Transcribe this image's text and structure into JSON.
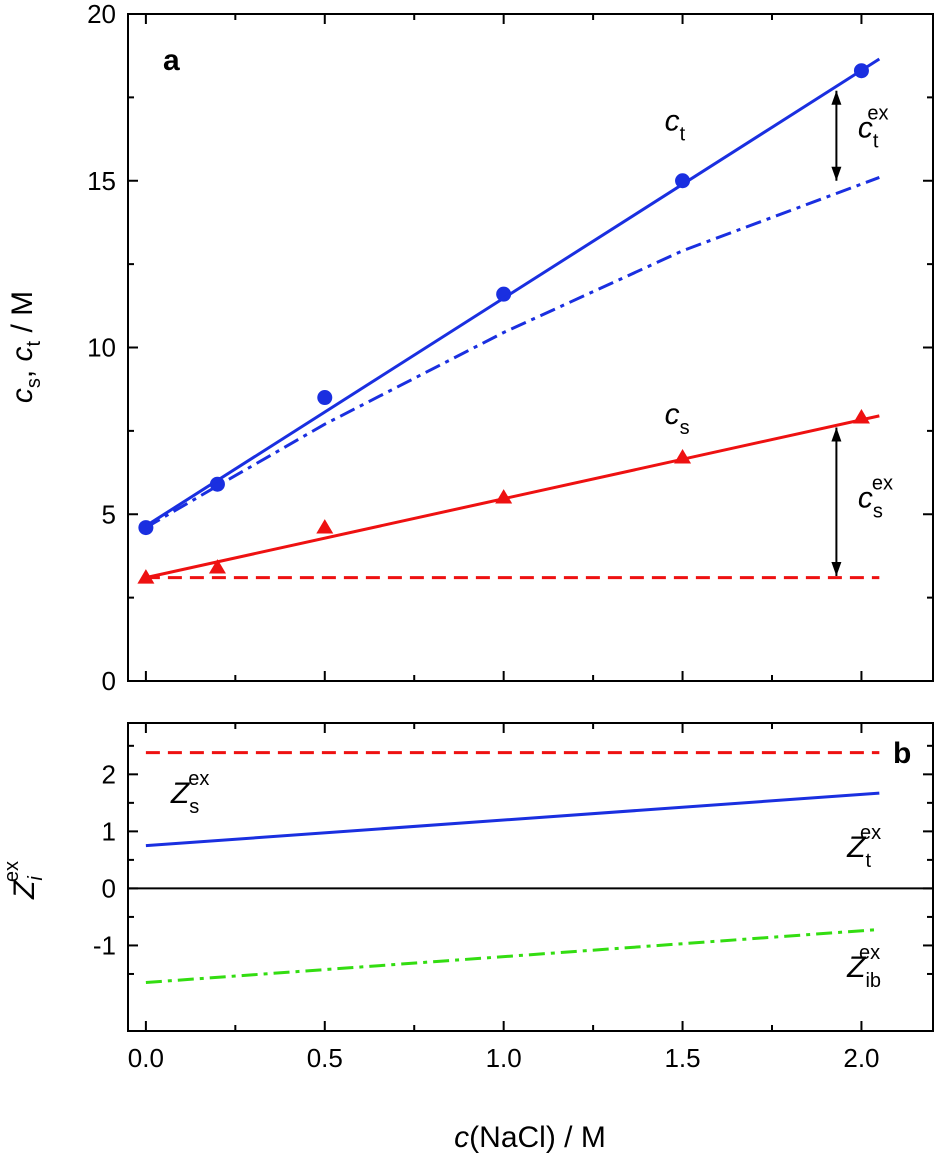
{
  "chart_data": [
    {
      "panel": "a",
      "type": "line",
      "xlabel": "c(NaCl) / M",
      "ylabel": "cs, ct / M",
      "xlim": [
        -0.05,
        2.2
      ],
      "ylim": [
        0,
        20
      ],
      "xticks": [
        "0.0",
        "0.5",
        "1.0",
        "1.5",
        "2.0"
      ],
      "yticks": [
        "0",
        "5",
        "10",
        "15",
        "20"
      ],
      "colors": {
        "ct": "#1a2fe0",
        "cs": "#ee1111"
      },
      "series": [
        {
          "key": "ct_points",
          "style": "circle",
          "color": "#1a2fe0",
          "x": [
            0.0,
            0.2,
            0.5,
            1.0,
            1.5,
            2.0
          ],
          "y": [
            4.6,
            5.9,
            8.5,
            11.6,
            15.0,
            18.3
          ]
        },
        {
          "key": "ct_fit",
          "style": "solid",
          "color": "#1a2fe0",
          "x": [
            0.0,
            2.05
          ],
          "y": [
            4.65,
            18.65
          ]
        },
        {
          "key": "ct_ideal",
          "style": "dashdot",
          "color": "#1a2fe0",
          "x": [
            0.0,
            0.2,
            0.5,
            1.0,
            1.5,
            2.05
          ],
          "y": [
            4.6,
            5.85,
            7.7,
            10.45,
            12.9,
            15.1
          ]
        },
        {
          "key": "cs_points",
          "style": "triangle",
          "color": "#ee1111",
          "x": [
            0.0,
            0.2,
            0.5,
            1.0,
            1.5,
            2.0
          ],
          "y": [
            3.1,
            3.4,
            4.6,
            5.5,
            6.7,
            7.9
          ]
        },
        {
          "key": "cs_fit",
          "style": "solid",
          "color": "#ee1111",
          "x": [
            0.0,
            2.05
          ],
          "y": [
            3.1,
            7.95
          ]
        },
        {
          "key": "cs_ideal",
          "style": "dashed",
          "color": "#ee1111",
          "x": [
            0.0,
            2.05
          ],
          "y": [
            3.1,
            3.1
          ]
        }
      ],
      "arrows": [
        {
          "x": 1.93,
          "y1": 15.0,
          "y2": 17.7
        },
        {
          "x": 1.93,
          "y1": 3.15,
          "y2": 7.6
        }
      ],
      "annotations": {
        "ct": {
          "main": "c",
          "sub": "t",
          "x": 1.45,
          "y": 16.5
        },
        "ct_ex": {
          "main": "c",
          "sub": "t",
          "sup": "ex",
          "x": 1.99,
          "y": 16.3
        },
        "cs": {
          "main": "c",
          "sub": "s",
          "x": 1.45,
          "y": 7.7
        },
        "cs_ex": {
          "main": "c",
          "sub": "s",
          "sup": "ex",
          "x": 1.99,
          "y": 5.2
        }
      }
    },
    {
      "panel": "b",
      "type": "line",
      "xlabel": "c(NaCl) / M",
      "ylabel": "Ziex",
      "xlim": [
        -0.05,
        2.2
      ],
      "ylim": [
        -2.5,
        2.9
      ],
      "xticks": [
        "0.0",
        "0.5",
        "1.0",
        "1.5",
        "2.0"
      ],
      "yticks": [
        "-1",
        "0",
        "1",
        "2"
      ],
      "series": [
        {
          "key": "zs",
          "style": "dashed",
          "color": "#ee1111",
          "x": [
            0.0,
            2.05
          ],
          "y": [
            2.38,
            2.38
          ]
        },
        {
          "key": "zt",
          "style": "solid",
          "color": "#1a2fe0",
          "x": [
            0.0,
            2.05
          ],
          "y": [
            0.75,
            1.67
          ]
        },
        {
          "key": "zib",
          "style": "dashdot",
          "color": "#33dd11",
          "x": [
            0.0,
            2.05
          ],
          "y": [
            -1.65,
            -0.72
          ]
        },
        {
          "key": "zero",
          "style": "solid",
          "color": "#000000",
          "x": [
            -0.05,
            2.2
          ],
          "y": [
            0,
            0
          ]
        }
      ],
      "annotations": {
        "zs": {
          "main": "Z",
          "sub": "s",
          "sup": "ex",
          "x": 0.07,
          "y": 1.5
        },
        "zt": {
          "main": "Z",
          "sub": "t",
          "sup": "ex",
          "x": 1.96,
          "y": 0.55
        },
        "zib": {
          "main": "Z",
          "sub": "ib",
          "sup": "ex",
          "x": 1.96,
          "y": -1.55
        }
      }
    }
  ],
  "labels": {
    "panel_a": "a",
    "panel_b": "b",
    "x_title_c": "c",
    "x_title_rest": "(NaCl)  /  M",
    "ya_c1": "c",
    "ya_sub1": "s",
    "ya_sep": ", ",
    "ya_c2": "c",
    "ya_sub2": "t",
    "ya_unit": "  /  M",
    "yb_z": "Z",
    "yb_sub": "i",
    "yb_sup": "ex"
  }
}
